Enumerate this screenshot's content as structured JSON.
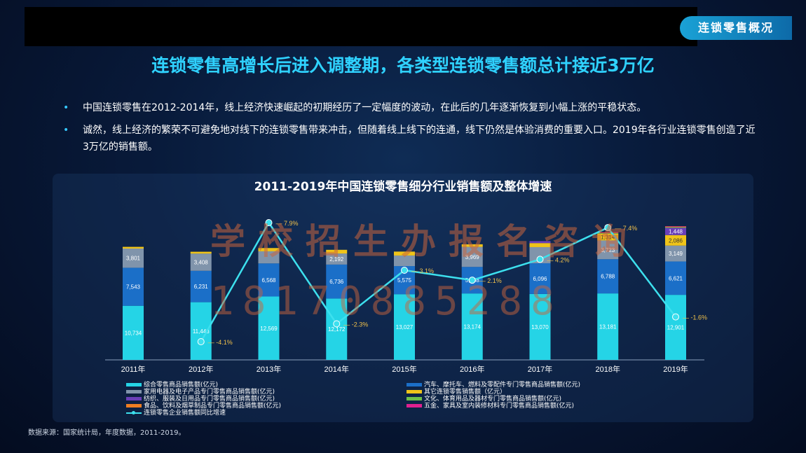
{
  "tag": "连锁零售概况",
  "headline": "连锁零售高增长后进入调整期，各类型连锁零售额总计接近3万亿",
  "bullets": [
    "中国连锁零售在2012-2014年，线上经济快速崛起的初期经历了一定幅度的波动，在此后的几年逐渐恢复到小幅上涨的平稳状态。",
    "诚然，线上经济的繁荣不可避免地对线下的连锁零售带来冲击，但随着线上线下的连通，线下仍然是体验消费的重要入口。2019年各行业连锁零售创造了近3万亿的销售额。"
  ],
  "source": "数据来源：国家统计局，年度数据，2011-2019。",
  "watermark": {
    "text": "学校招生办报名咨询",
    "number": "18170885288"
  },
  "chart_data": {
    "type": "bar",
    "stacked": true,
    "title": "2011-2019年中国连锁零售细分行业销售额及整体增速",
    "categories": [
      "2011年",
      "2012年",
      "2013年",
      "2014年",
      "2015年",
      "2016年",
      "2017年",
      "2018年",
      "2019年"
    ],
    "series": [
      {
        "name": "综合零售商品销售额(亿元)",
        "color": "#25d4e6",
        "values": [
          10734,
          11443,
          12569,
          12172,
          13027,
          13174,
          13070,
          13181,
          12901
        ],
        "labels": [
          "10,734",
          "11,443",
          "12,569",
          "12,172",
          "13,027",
          "13,174",
          "13,070",
          "13,181",
          "12,901"
        ]
      },
      {
        "name": "汽车、摩托车、燃料及零配件专门零售商品销售额(亿元)",
        "color": "#1b6fc8",
        "values": [
          7543,
          6231,
          6568,
          6736,
          5575,
          5268,
          6096,
          6788,
          6621
        ],
        "labels": [
          "7,543",
          "6,231",
          "6,568",
          "6,736",
          "5,575",
          "5,268",
          "6,096",
          "6,788",
          "6,621"
        ]
      },
      {
        "name": "家用电器及电子产品专门零售商品销售额(亿元)",
        "color": "#8094ab",
        "values": [
          3801,
          3408,
          2400,
          2192,
          2100,
          3969,
          3200,
          3723,
          3149
        ],
        "labels": [
          "3,801",
          "3,408",
          "",
          "2,192",
          "",
          "3,969",
          "",
          "3,723",
          "3,149"
        ]
      },
      {
        "name": "其它连锁零售销售额（亿元）",
        "color": "#f0c419",
        "values": [
          344,
          367,
          650,
          733,
          778,
          521,
          800,
          1314,
          2086
        ],
        "labels": [
          "344",
          "367",
          "",
          "733",
          "778",
          "521",
          "",
          "1,314",
          "2,086"
        ]
      },
      {
        "name": "纺织、服装及日用品专门零售商品销售额(亿元)",
        "color": "#6a3fb8",
        "values": [
          0,
          0,
          0,
          0,
          0,
          0,
          400,
          0,
          1448
        ],
        "labels": [
          "",
          "",
          "",
          "",
          "",
          "",
          "",
          "",
          "1,448"
        ]
      },
      {
        "name": "文化、体育用品及器材专门零售商品销售额(亿元)",
        "color": "#6cc04a",
        "values": [
          0,
          0,
          0,
          0,
          0,
          0,
          0,
          120,
          120
        ],
        "labels": [
          "",
          "",
          "",
          "",
          "",
          "",
          "",
          "",
          ""
        ]
      },
      {
        "name": "食品、饮料及烟草制品专门零售商品销售额(亿元)",
        "color": "#ef7d22",
        "values": [
          0,
          0,
          0,
          0,
          0,
          0,
          0,
          110,
          110
        ],
        "labels": [
          "",
          "",
          "",
          "",
          "",
          "",
          "",
          "",
          ""
        ]
      },
      {
        "name": "五金、家具及室内装修材料专门零售商品销售额(亿元)",
        "color": "#e0208f",
        "values": [
          0,
          0,
          0,
          0,
          0,
          0,
          0,
          90,
          90
        ],
        "labels": [
          "",
          "",
          "",
          "",
          "",
          "",
          "",
          "",
          ""
        ]
      }
    ],
    "growth": {
      "name": "连锁零售企业销售额同比增速",
      "values": [
        -4.1,
        7.9,
        -2.3,
        3.1,
        2.1,
        4.2,
        7.4,
        -1.6
      ],
      "labels": [
        "-4.1%",
        "7.9%",
        "-2.3%",
        "3.1%",
        "2.1%",
        "4.2%",
        "7.4%",
        "-1.6%"
      ],
      "color": "#3de0ee"
    }
  }
}
